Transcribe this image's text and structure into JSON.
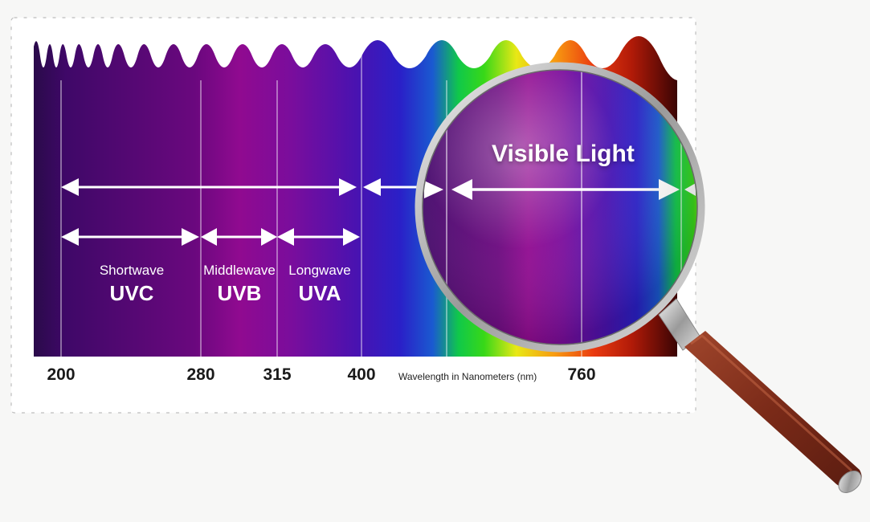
{
  "title": "Visible Light",
  "axis_title": "Wavelength in Nanometers (nm)",
  "ticks": [
    "200",
    "280",
    "315",
    "400",
    "760"
  ],
  "bands": [
    {
      "sub": "Shortwave",
      "name": "UVC"
    },
    {
      "sub": "Middlewave",
      "name": "UVB"
    },
    {
      "sub": "Longwave",
      "name": "UVA"
    }
  ],
  "colors": {
    "uv_dark": "#2e0854",
    "uv_magenta": "#8a0a8c",
    "uv_violet": "#4a0fb0",
    "handle": "#8a3a26",
    "frame": "#b7b7b7"
  },
  "icons": [
    "magnifying-glass-icon"
  ]
}
